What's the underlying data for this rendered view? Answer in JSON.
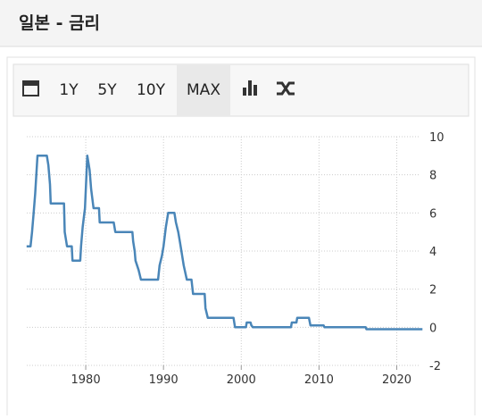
{
  "header": {
    "title": "일본 - 금리"
  },
  "toolbar": {
    "buttons": [
      "1Y",
      "5Y",
      "10Y",
      "MAX"
    ]
  },
  "chart_data": {
    "type": "line",
    "color": "#4a86b8",
    "grid": true,
    "x": [
      1972.4,
      1972.9,
      1973.1,
      1973.3,
      1973.5,
      1973.8,
      1975.0,
      1975.2,
      1975.4,
      1975.5,
      1977.2,
      1977.3,
      1977.6,
      1978.2,
      1978.3,
      1979.3,
      1979.4,
      1979.6,
      1979.9,
      1980.2,
      1980.5,
      1980.7,
      1981.0,
      1981.7,
      1981.8,
      1983.6,
      1983.8,
      1986.0,
      1986.1,
      1986.3,
      1986.4,
      1986.8,
      1987.1,
      1989.3,
      1989.5,
      1989.8,
      1990.0,
      1990.3,
      1990.6,
      1991.4,
      1991.6,
      1991.9,
      1992.1,
      1992.4,
      1992.6,
      1993.0,
      1993.6,
      1993.8,
      1995.3,
      1995.4,
      1995.7,
      1999.0,
      1999.2,
      2000.6,
      2000.7,
      2001.2,
      2001.3,
      2001.5,
      2006.4,
      2006.5,
      2007.1,
      2007.2,
      2008.7,
      2008.8,
      2008.9,
      2010.6,
      2010.7,
      2016.0,
      2016.1,
      2023.3
    ],
    "values": [
      4.25,
      4.25,
      5,
      6,
      7,
      9,
      9,
      8.5,
      7.5,
      6.5,
      6.5,
      5,
      4.25,
      4.25,
      3.5,
      3.5,
      4.25,
      5.25,
      6.25,
      9,
      8.25,
      7.25,
      6.25,
      6.25,
      5.5,
      5.5,
      5,
      5,
      4.5,
      4,
      3.5,
      3,
      2.5,
      2.5,
      3.25,
      3.75,
      4.25,
      5.25,
      6,
      6,
      5.5,
      5,
      4.5,
      3.75,
      3.25,
      2.5,
      2.5,
      1.75,
      1.75,
      1,
      0.5,
      0.5,
      0,
      0,
      0.25,
      0.25,
      0.1,
      0,
      0,
      0.25,
      0.25,
      0.5,
      0.5,
      0.3,
      0.1,
      0.1,
      0,
      0,
      -0.1,
      -0.1
    ],
    "xlim": [
      1971.5,
      2023.5
    ],
    "xticks": [
      1980,
      1990,
      2000,
      2010,
      2020
    ],
    "ylim": [
      -2,
      10
    ],
    "yticks": [
      -2,
      0,
      2,
      4,
      6,
      8,
      10
    ]
  }
}
